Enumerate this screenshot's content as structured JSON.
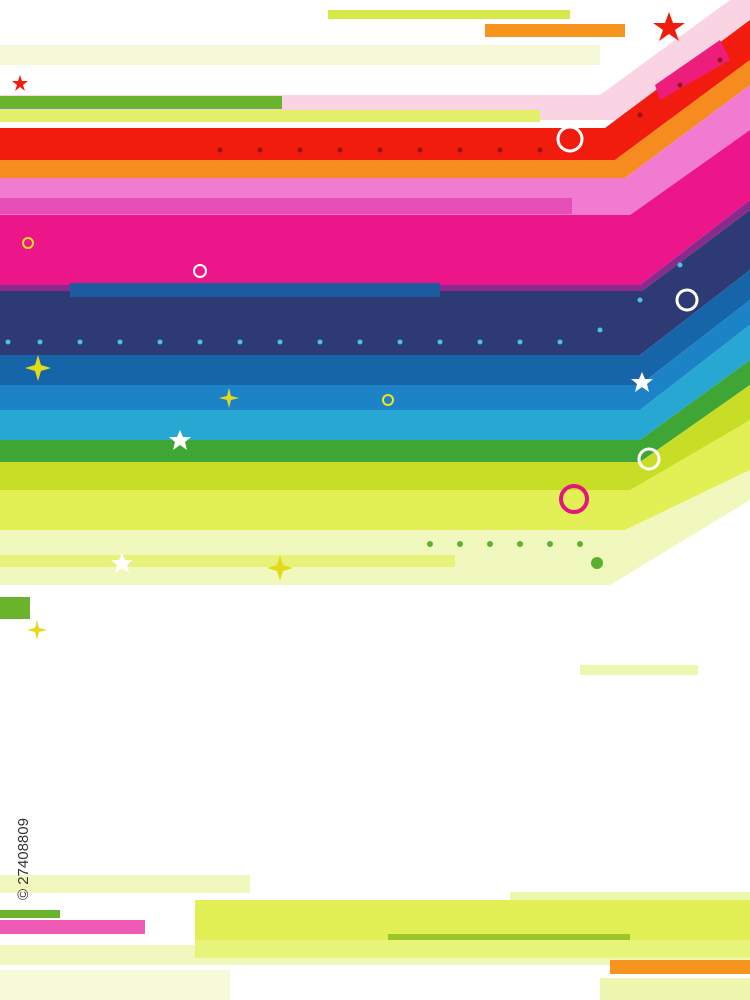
{
  "watermark_id": "© 27408809"
}
